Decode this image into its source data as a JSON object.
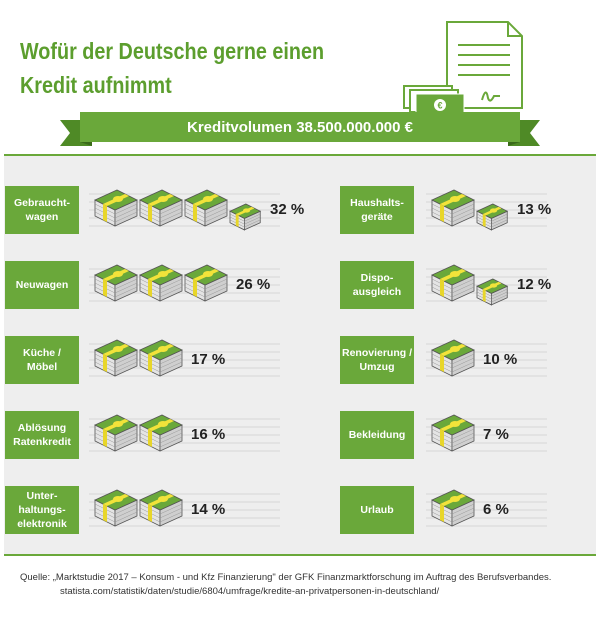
{
  "chart_data": {
    "type": "pictogram",
    "title": "Wofür der Deutsche gerne einen\nKredit aufnimmt",
    "subtitle": "Kreditvolumen 38.500.000.000 €",
    "categories": [
      "Gebraucht-\nwagen",
      "Neuwagen",
      "Küche /\nMöbel",
      "Ablösung\nRatenkredit",
      "Unter-\nhaltungs-\nelektronik",
      "Haushalts-\ngeräte",
      "Dispo-\nausgleich",
      "Renovierung /\nUmzug",
      "Bekleidung",
      "Urlaub"
    ],
    "values": [
      32,
      26,
      17,
      16,
      14,
      13,
      12,
      10,
      7,
      6
    ],
    "value_labels": [
      "32 %",
      "26 %",
      "17 %",
      "16 %",
      "14 %",
      "13 %",
      "12 %",
      "10 %",
      "7 %",
      "6 %"
    ],
    "color": "#6aa83a",
    "source": [
      "Quelle: „Marktstudie 2017 – Konsum - und Kfz Finanzierung\" der GFK Finanzmarktforschung im Auftrag des Berufsverbandes.",
      "statista.com/statistik/daten/studie/6804/umfrage/kredite-an-privatpersonen-in-deutschland/"
    ]
  }
}
